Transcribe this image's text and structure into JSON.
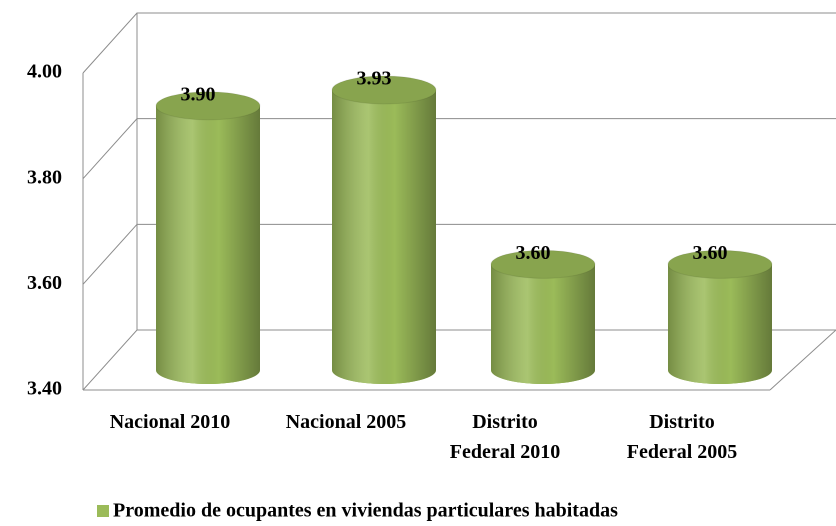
{
  "chart_data": {
    "type": "bar3d",
    "categories": [
      "Nacional 2010",
      "Nacional 2005",
      "Distrito Federal 2010",
      "Distrito Federal 2005"
    ],
    "series": [
      {
        "name": "Promedio de ocupantes en viviendas particulares habitadas",
        "color": "#9bbb59",
        "values": [
          3.9,
          3.93,
          3.6,
          3.6
        ],
        "value_labels": [
          "3.90",
          "3.93",
          "3.60",
          "3.60"
        ]
      }
    ],
    "ylim": [
      3.4,
      4.0
    ],
    "yticks": [
      {
        "value": 3.4,
        "label": "3.40"
      },
      {
        "value": 3.6,
        "label": "3.60"
      },
      {
        "value": 3.8,
        "label": "3.80"
      },
      {
        "value": 4.0,
        "label": "4.00"
      }
    ],
    "grid": true,
    "legend": "bottom"
  }
}
